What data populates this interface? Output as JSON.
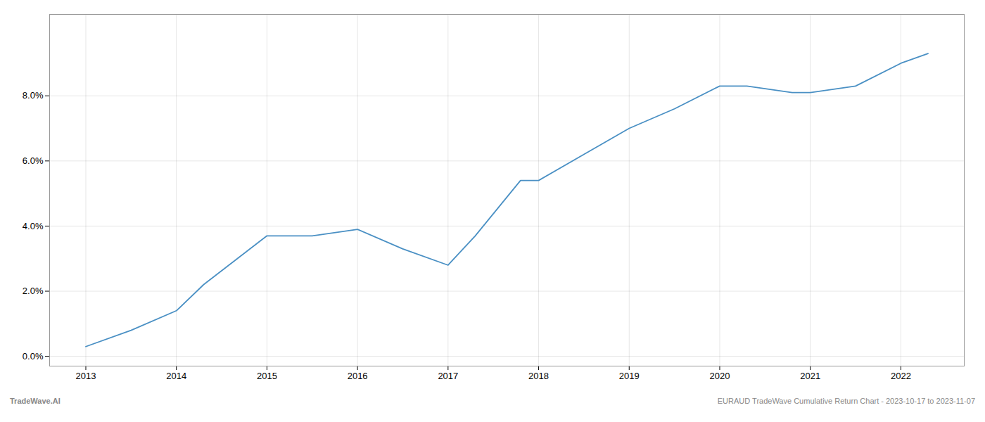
{
  "chart_data": {
    "type": "line",
    "x": [
      2013,
      2013.5,
      2014,
      2014.3,
      2015,
      2015.5,
      2016,
      2016.5,
      2017,
      2017.3,
      2017.8,
      2018,
      2018.5,
      2019,
      2019.5,
      2020,
      2020.3,
      2020.8,
      2021,
      2021.5,
      2022,
      2022.3
    ],
    "values": [
      0.003,
      0.008,
      0.014,
      0.022,
      0.037,
      0.037,
      0.039,
      0.033,
      0.028,
      0.037,
      0.054,
      0.054,
      0.062,
      0.07,
      0.076,
      0.083,
      0.083,
      0.081,
      0.081,
      0.083,
      0.09,
      0.093
    ],
    "color": "#4a90c4",
    "xlim": [
      2012.6,
      2022.7
    ],
    "ylim": [
      -0.003,
      0.105
    ],
    "xticks": [
      2013,
      2014,
      2015,
      2016,
      2017,
      2018,
      2019,
      2020,
      2021,
      2022
    ],
    "yticks": [
      {
        "value": 0.0,
        "label": "0.0%"
      },
      {
        "value": 0.02,
        "label": "2.0%"
      },
      {
        "value": 0.04,
        "label": "4.0%"
      },
      {
        "value": 0.06,
        "label": "6.0%"
      },
      {
        "value": 0.08,
        "label": "8.0%"
      }
    ],
    "grid": true,
    "annotations": [
      "TradeWave.AI",
      "EURAUD TradeWave Cumulative Return Chart - 2023-10-17 to 2023-11-07"
    ]
  }
}
